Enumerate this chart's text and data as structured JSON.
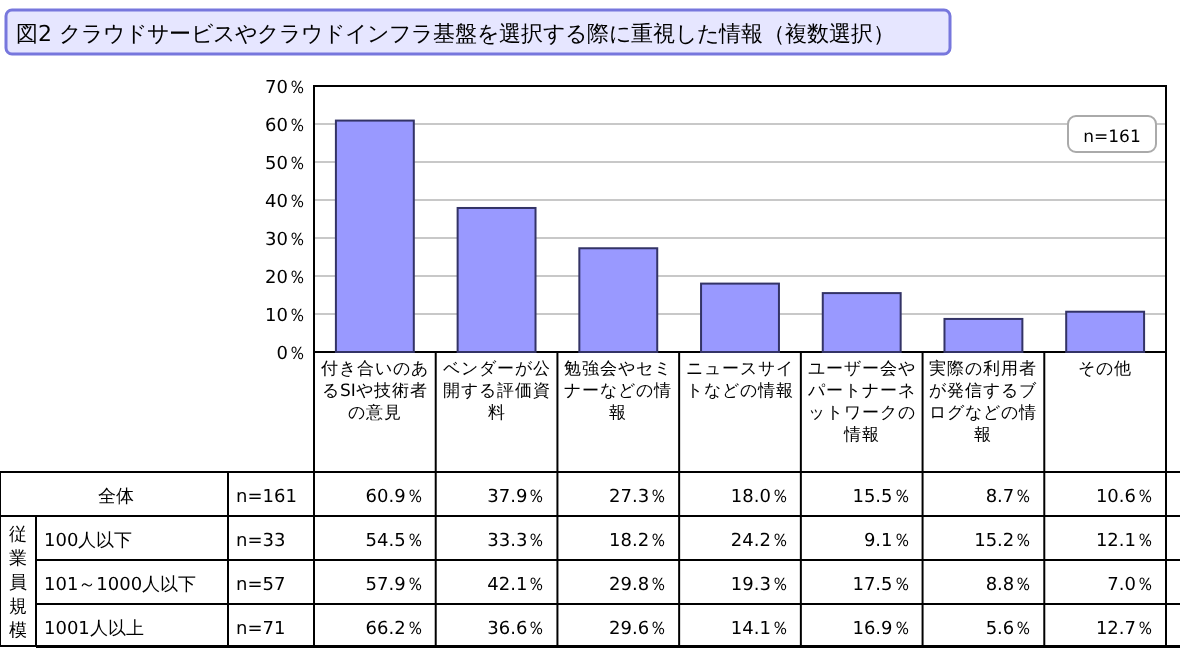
{
  "chart_data": [
    {
      "type": "bar",
      "title": "図2 クラウドサービスやクラウドインフラ基盤を選択する際に重視した情報（複数選択）",
      "categories": [
        "付き合いのあるSIや技術者の意見",
        "ベンダーが公開する評価資料",
        "勉強会やセミナーなどの情報",
        "ニュースサイトなどの情報",
        "ユーザー会やパートナーネットワークの情報",
        "実際の利用者が発信するブログなどの情報",
        "その他"
      ],
      "values": [
        60.9,
        37.9,
        27.3,
        18.0,
        15.5,
        8.7,
        10.6
      ],
      "value_labels": [
        "60.9％",
        "37.9％",
        "27.3％",
        "18.0％",
        "15.5％",
        "8.7％",
        "10.6％"
      ],
      "color": "#9999ff",
      "ylim": [
        0,
        70
      ],
      "yticks": [
        {
          "value": 0,
          "label": "0％"
        },
        {
          "value": 10,
          "label": "10％"
        },
        {
          "value": 20,
          "label": "20％"
        },
        {
          "value": 30,
          "label": "30％"
        },
        {
          "value": 40,
          "label": "40％"
        },
        {
          "value": 50,
          "label": "50％"
        },
        {
          "value": 60,
          "label": "60％"
        },
        {
          "value": 70,
          "label": "70％"
        }
      ],
      "grid": "y",
      "annotations": [
        "n=161",
        "全体",
        "n=161"
      ]
    },
    {
      "type": "other",
      "annotations": [
        "従業員規模",
        "100人以下",
        "n=33",
        "54.5％",
        "33.3％",
        "18.2％",
        "24.2％",
        "9.1％",
        "15.2％",
        "12.1％",
        "101～1000人以下",
        "n=57",
        "57.9％",
        "42.1％",
        "29.8％",
        "19.3％",
        "17.5％",
        "8.8％",
        "7.0％",
        "1001人以上",
        "n=71",
        "66.2％",
        "36.6％",
        "29.6％",
        "14.1％",
        "16.9％",
        "5.6％",
        "12.7％"
      ]
    }
  ]
}
